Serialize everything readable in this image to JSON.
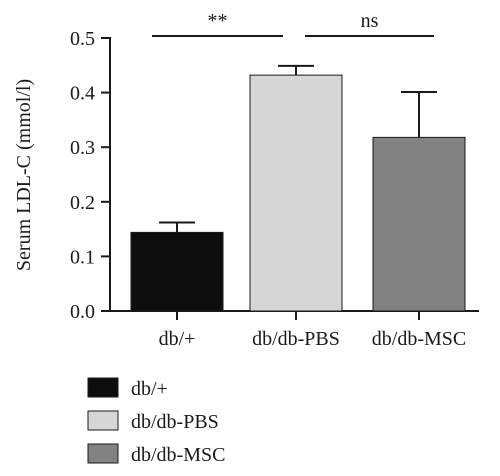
{
  "chart_data": {
    "type": "bar",
    "ylabel": "Serum LDL-C (mmol/l)",
    "xlabel": "",
    "ylim": [
      0,
      0.5
    ],
    "yticks": [
      "0.0",
      "0.1",
      "0.2",
      "0.3",
      "0.4",
      "0.5"
    ],
    "categories": [
      "db/+",
      "db/db-PBS",
      "db/db-MSC"
    ],
    "values": [
      0.144,
      0.432,
      0.318
    ],
    "errors": [
      0.018,
      0.017,
      0.083
    ],
    "colors": [
      "#0d0d0d",
      "#d6d6d6",
      "#828282"
    ],
    "significance": [
      {
        "label": "**",
        "from": 0,
        "to": 1
      },
      {
        "label": "ns",
        "from": 1,
        "to": 2
      }
    ],
    "legend": {
      "placement": "bottom-left",
      "entries": [
        "db/+",
        "db/db-PBS",
        "db/db-MSC"
      ]
    }
  }
}
